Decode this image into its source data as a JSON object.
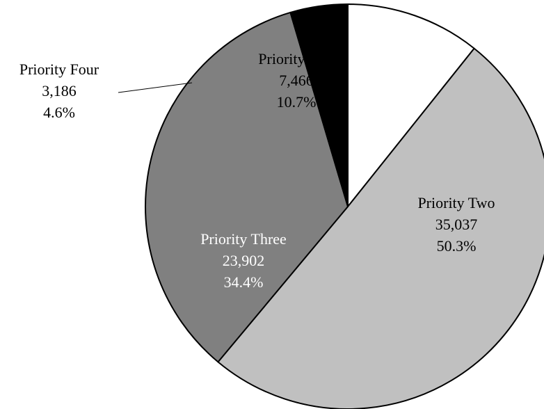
{
  "chart_data": {
    "type": "pie",
    "slices": [
      {
        "name": "Priority One",
        "value": 7466,
        "value_label": "7,466",
        "percent": 10.7,
        "percent_label": "10.7%",
        "color": "#ffffff",
        "text_color": "#000000"
      },
      {
        "name": "Priority Two",
        "value": 35037,
        "value_label": "35,037",
        "percent": 50.3,
        "percent_label": "50.3%",
        "color": "#c0c0c0",
        "text_color": "#000000"
      },
      {
        "name": "Priority Three",
        "value": 23902,
        "value_label": "23,902",
        "percent": 34.4,
        "percent_label": "34.4%",
        "color": "#808080",
        "text_color": "#ffffff"
      },
      {
        "name": "Priority Four",
        "value": 3186,
        "value_label": "3,186",
        "percent": 4.6,
        "percent_label": "4.6%",
        "color": "#000000",
        "text_color": "#000000"
      }
    ],
    "start_angle_deg": 0,
    "direction": "clockwise",
    "edge_color": "#000000",
    "legend": "none"
  }
}
